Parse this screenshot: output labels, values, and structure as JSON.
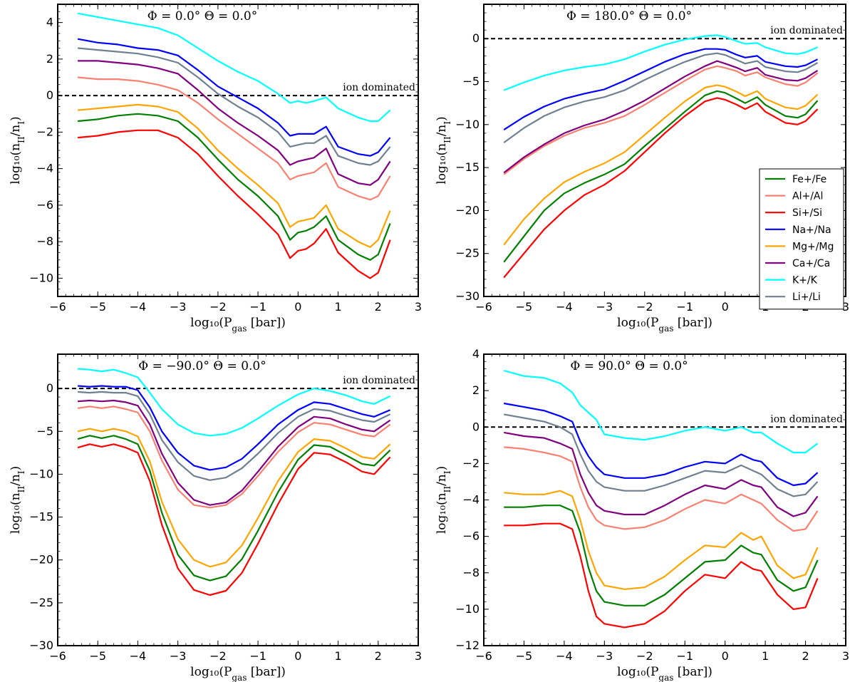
{
  "chart_data": [
    {
      "type": "line",
      "title": "Φ = 0.0° Θ = 0.0°",
      "xlabel": "log10(Pgas [bar])",
      "ylabel": "log10(nII/nI)",
      "xlim": [
        -6,
        3
      ],
      "ylim": [
        -11,
        5
      ],
      "xticks": [
        -6,
        -5,
        -4,
        -3,
        -2,
        -1,
        0,
        1,
        2,
        3
      ],
      "yticks": [
        -10,
        -8,
        -6,
        -4,
        -2,
        0,
        2,
        4
      ],
      "annotation": "ion dominated",
      "x": [
        -5.5,
        -5,
        -4.5,
        -4,
        -3.5,
        -3,
        -2.5,
        -2,
        -1.5,
        -1,
        -0.5,
        -0.2,
        0,
        0.2,
        0.4,
        0.7,
        1,
        1.5,
        1.8,
        2,
        2.3
      ],
      "series": [
        {
          "name": "K+/K",
          "color": "#00ffff",
          "values": [
            4.5,
            4.3,
            4.1,
            3.9,
            3.7,
            3.3,
            2.6,
            1.9,
            1.3,
            0.8,
            0.1,
            -0.4,
            -0.3,
            -0.4,
            -0.3,
            -0.1,
            -0.7,
            -1.2,
            -1.4,
            -1.4,
            -0.8
          ]
        },
        {
          "name": "Na+/Na",
          "color": "#0000ff",
          "values": [
            3.1,
            2.9,
            2.8,
            2.6,
            2.5,
            2.2,
            1.4,
            0.5,
            -0.1,
            -0.7,
            -1.5,
            -2.2,
            -2.1,
            -2.1,
            -2.1,
            -1.7,
            -2.8,
            -3.2,
            -3.3,
            -3.1,
            -2.3
          ]
        },
        {
          "name": "Li+/Li",
          "color": "#708090",
          "values": [
            2.6,
            2.5,
            2.4,
            2.3,
            2.1,
            1.8,
            1.0,
            0.1,
            -0.6,
            -1.2,
            -2.0,
            -2.8,
            -2.7,
            -2.6,
            -2.6,
            -2.2,
            -3.3,
            -3.7,
            -3.8,
            -3.6,
            -2.8
          ]
        },
        {
          "name": "Ca+/Ca",
          "color": "#800080",
          "values": [
            1.9,
            1.9,
            1.8,
            1.7,
            1.5,
            1.2,
            0.3,
            -0.7,
            -1.5,
            -2.2,
            -3.0,
            -3.8,
            -3.6,
            -3.5,
            -3.4,
            -2.9,
            -4.3,
            -4.8,
            -4.9,
            -4.6,
            -3.6
          ]
        },
        {
          "name": "Al+/Al",
          "color": "#fa8072",
          "values": [
            1.0,
            0.9,
            0.9,
            0.8,
            0.6,
            0.3,
            -0.4,
            -1.3,
            -2.1,
            -2.9,
            -3.7,
            -4.6,
            -4.4,
            -4.3,
            -4.2,
            -3.7,
            -5.0,
            -5.5,
            -5.7,
            -5.5,
            -4.4
          ]
        },
        {
          "name": "Mg+/Mg",
          "color": "#ffa500",
          "values": [
            -0.8,
            -0.7,
            -0.6,
            -0.5,
            -0.6,
            -0.9,
            -1.8,
            -3.0,
            -4.0,
            -4.9,
            -5.9,
            -7.2,
            -6.9,
            -6.8,
            -6.7,
            -6.0,
            -7.3,
            -8.0,
            -8.3,
            -7.9,
            -6.3
          ]
        },
        {
          "name": "Fe+/Fe",
          "color": "#008000",
          "values": [
            -1.4,
            -1.3,
            -1.1,
            -1.0,
            -1.1,
            -1.4,
            -2.3,
            -3.5,
            -4.6,
            -5.5,
            -6.6,
            -7.9,
            -7.5,
            -7.4,
            -7.2,
            -6.6,
            -7.9,
            -8.7,
            -9.0,
            -8.7,
            -7.0
          ]
        },
        {
          "name": "Si+/Si",
          "color": "#ff0000",
          "values": [
            -2.3,
            -2.2,
            -2.0,
            -1.9,
            -1.9,
            -2.3,
            -3.2,
            -4.4,
            -5.5,
            -6.5,
            -7.6,
            -8.9,
            -8.5,
            -8.4,
            -8.1,
            -7.3,
            -8.6,
            -9.6,
            -10.0,
            -9.7,
            -7.9
          ]
        }
      ]
    },
    {
      "type": "line",
      "title": "Φ = 180.0° Θ = 0.0°",
      "xlabel": "log10(Pgas [bar])",
      "ylabel": "log10(nII/nI)",
      "xlim": [
        -6,
        3
      ],
      "ylim": [
        -30,
        4
      ],
      "xticks": [
        -6,
        -5,
        -4,
        -3,
        -2,
        -1,
        0,
        1,
        2,
        3
      ],
      "yticks": [
        -30,
        -25,
        -20,
        -15,
        -10,
        -5,
        0
      ],
      "annotation": "ion dominated",
      "legend_position": "lower-right",
      "x": [
        -5.5,
        -5,
        -4.5,
        -4,
        -3.5,
        -3,
        -2.5,
        -2,
        -1.5,
        -1,
        -0.5,
        -0.2,
        0,
        0.3,
        0.5,
        0.8,
        1,
        1.5,
        1.8,
        2,
        2.3
      ],
      "series": [
        {
          "name": "Fe+/Fe",
          "color": "#008000",
          "values": [
            -26.0,
            -23.0,
            -20.0,
            -18.0,
            -16.8,
            -15.8,
            -14.6,
            -12.5,
            -10.5,
            -8.5,
            -6.6,
            -6.1,
            -6.3,
            -7.0,
            -7.5,
            -6.8,
            -7.7,
            -9.0,
            -9.2,
            -8.8,
            -7.2
          ]
        },
        {
          "name": "Al+/Al",
          "color": "#fa8072",
          "values": [
            -15.8,
            -14.0,
            -12.5,
            -11.3,
            -10.4,
            -9.8,
            -9.0,
            -7.7,
            -6.3,
            -4.9,
            -3.6,
            -3.2,
            -3.4,
            -3.8,
            -4.3,
            -3.9,
            -4.5,
            -5.3,
            -5.5,
            -5.1,
            -4.0
          ]
        },
        {
          "name": "Si+/Si",
          "color": "#ff0000",
          "values": [
            -27.8,
            -25.0,
            -22.2,
            -20.0,
            -18.2,
            -17.0,
            -15.4,
            -13.2,
            -11.0,
            -9.0,
            -7.3,
            -6.9,
            -7.1,
            -7.7,
            -8.2,
            -7.5,
            -8.5,
            -9.8,
            -10.0,
            -9.6,
            -8.2
          ]
        },
        {
          "name": "Na+/Na",
          "color": "#0000ff",
          "values": [
            -10.6,
            -9.1,
            -7.9,
            -7.0,
            -6.4,
            -5.9,
            -4.9,
            -3.8,
            -2.7,
            -1.8,
            -1.2,
            -1.2,
            -1.3,
            -1.9,
            -2.2,
            -2.0,
            -2.7,
            -3.2,
            -3.3,
            -3.1,
            -2.4
          ]
        },
        {
          "name": "Mg+/Mg",
          "color": "#ffa500",
          "values": [
            -24.0,
            -21.0,
            -18.6,
            -16.7,
            -15.5,
            -14.5,
            -13.2,
            -11.2,
            -9.2,
            -7.3,
            -5.7,
            -5.4,
            -5.6,
            -6.2,
            -6.7,
            -6.1,
            -7.0,
            -8.0,
            -8.2,
            -7.8,
            -6.5
          ]
        },
        {
          "name": "Ca+/Ca",
          "color": "#800080",
          "values": [
            -15.6,
            -13.8,
            -12.3,
            -11.0,
            -10.1,
            -9.4,
            -8.4,
            -7.2,
            -5.8,
            -4.4,
            -3.2,
            -2.6,
            -2.9,
            -3.4,
            -3.8,
            -3.4,
            -4.2,
            -4.8,
            -4.9,
            -4.6,
            -3.7
          ]
        },
        {
          "name": "K+/K",
          "color": "#00ffff",
          "values": [
            -6.0,
            -5.1,
            -4.3,
            -3.7,
            -3.3,
            -3.0,
            -2.4,
            -1.5,
            -0.7,
            -0.1,
            0.3,
            0.4,
            0.2,
            -0.3,
            -0.6,
            -0.5,
            -1.0,
            -1.7,
            -1.8,
            -1.6,
            -1.0
          ]
        },
        {
          "name": "Li+/Li",
          "color": "#708090",
          "values": [
            -12.1,
            -10.4,
            -9.0,
            -8.0,
            -7.3,
            -6.8,
            -6.0,
            -4.8,
            -3.7,
            -2.7,
            -1.9,
            -1.7,
            -1.9,
            -2.5,
            -2.9,
            -2.6,
            -3.3,
            -3.8,
            -3.9,
            -3.6,
            -2.8
          ]
        }
      ]
    },
    {
      "type": "line",
      "title": "Φ = −90.0° Θ = 0.0°",
      "xlabel": "log10(Pgas [bar])",
      "ylabel": "log10(nII/nI)",
      "xlim": [
        -6,
        3
      ],
      "ylim": [
        -30,
        4
      ],
      "xticks": [
        -6,
        -5,
        -4,
        -3,
        -2,
        -1,
        0,
        1,
        2,
        3
      ],
      "yticks": [
        -30,
        -25,
        -20,
        -15,
        -10,
        -5,
        0
      ],
      "annotation": "ion dominated",
      "x": [
        -5.5,
        -5.2,
        -4.9,
        -4.6,
        -4.3,
        -4.0,
        -3.7,
        -3.4,
        -3.0,
        -2.6,
        -2.2,
        -1.8,
        -1.4,
        -1.0,
        -0.5,
        0,
        0.4,
        0.8,
        1.2,
        1.6,
        1.9,
        2.3
      ],
      "series": [
        {
          "name": "K+/K",
          "color": "#00ffff",
          "values": [
            2.3,
            2.2,
            2.0,
            2.2,
            1.8,
            1.3,
            -0.5,
            -2.4,
            -4.2,
            -5.2,
            -5.5,
            -5.3,
            -4.6,
            -3.5,
            -2.0,
            -0.7,
            0.0,
            -0.3,
            -0.8,
            -1.5,
            -1.8,
            -0.9
          ]
        },
        {
          "name": "Na+/Na",
          "color": "#0000ff",
          "values": [
            0.3,
            0.2,
            0.3,
            0.2,
            0.2,
            -0.2,
            -2.2,
            -5.0,
            -7.5,
            -9.0,
            -9.5,
            -9.2,
            -8.2,
            -6.5,
            -4.2,
            -2.5,
            -1.6,
            -1.8,
            -2.4,
            -3.0,
            -3.3,
            -2.5
          ]
        },
        {
          "name": "Li+/Li",
          "color": "#708090",
          "values": [
            -0.4,
            -0.5,
            -0.4,
            -0.5,
            -0.5,
            -0.9,
            -3.0,
            -6.0,
            -8.6,
            -10.2,
            -10.7,
            -10.4,
            -9.3,
            -7.6,
            -5.2,
            -3.3,
            -2.4,
            -2.6,
            -3.2,
            -3.7,
            -3.9,
            -3.0
          ]
        },
        {
          "name": "Ca+/Ca",
          "color": "#800080",
          "values": [
            -1.5,
            -1.4,
            -1.5,
            -1.4,
            -1.6,
            -2.0,
            -4.2,
            -7.6,
            -11.0,
            -13.0,
            -13.6,
            -13.3,
            -11.9,
            -9.7,
            -6.8,
            -4.5,
            -3.3,
            -3.5,
            -4.2,
            -4.8,
            -5.0,
            -3.7
          ]
        },
        {
          "name": "Al+/Al",
          "color": "#fa8072",
          "values": [
            -2.3,
            -2.1,
            -2.3,
            -2.1,
            -2.4,
            -2.8,
            -5.0,
            -8.4,
            -11.8,
            -13.6,
            -13.9,
            -13.6,
            -12.3,
            -10.2,
            -7.4,
            -5.1,
            -4.0,
            -4.2,
            -4.8,
            -5.4,
            -5.6,
            -4.2
          ]
        },
        {
          "name": "Mg+/Mg",
          "color": "#ffa500",
          "values": [
            -5.0,
            -4.7,
            -5.0,
            -4.7,
            -5.0,
            -5.6,
            -8.5,
            -13.2,
            -17.6,
            -20.0,
            -20.8,
            -20.3,
            -18.3,
            -15.1,
            -10.8,
            -7.4,
            -5.9,
            -6.1,
            -7.0,
            -8.0,
            -8.2,
            -6.5
          ]
        },
        {
          "name": "Fe+/Fe",
          "color": "#008000",
          "values": [
            -5.9,
            -5.5,
            -5.8,
            -5.5,
            -5.9,
            -6.5,
            -9.6,
            -14.5,
            -19.4,
            -21.8,
            -22.4,
            -21.9,
            -19.9,
            -16.6,
            -12.1,
            -8.3,
            -6.6,
            -6.8,
            -7.8,
            -8.8,
            -9.0,
            -7.2
          ]
        },
        {
          "name": "Si+/Si",
          "color": "#ff0000",
          "values": [
            -6.9,
            -6.5,
            -6.8,
            -6.5,
            -6.9,
            -7.5,
            -10.8,
            -15.9,
            -21.0,
            -23.5,
            -24.1,
            -23.6,
            -21.5,
            -18.1,
            -13.5,
            -9.4,
            -7.5,
            -7.7,
            -8.6,
            -9.7,
            -10.0,
            -8.0
          ]
        }
      ]
    },
    {
      "type": "line",
      "title": "Φ = 90.0° Θ = 0.0°",
      "xlabel": "log10(Pgas [bar])",
      "ylabel": "log10(nII/nI)",
      "xlim": [
        -6,
        3
      ],
      "ylim": [
        -12,
        4
      ],
      "xticks": [
        -6,
        -5,
        -4,
        -3,
        -2,
        -1,
        0,
        1,
        2,
        3
      ],
      "yticks": [
        -12,
        -10,
        -8,
        -6,
        -4,
        -2,
        0,
        2,
        4
      ],
      "annotation": "ion dominated",
      "x": [
        -5.5,
        -5,
        -4.5,
        -4.1,
        -3.8,
        -3.6,
        -3.4,
        -3.2,
        -3.0,
        -2.5,
        -2.0,
        -1.5,
        -1.0,
        -0.5,
        0,
        0.4,
        0.7,
        0.9,
        1.3,
        1.7,
        2.0,
        2.3
      ],
      "series": [
        {
          "name": "K+/K",
          "color": "#00ffff",
          "values": [
            3.1,
            2.8,
            2.7,
            2.4,
            1.9,
            1.2,
            0.8,
            0.4,
            -0.4,
            -0.6,
            -0.7,
            -0.5,
            -0.2,
            0.0,
            -0.2,
            0.0,
            -0.3,
            -0.3,
            -0.9,
            -1.4,
            -1.4,
            -0.9
          ]
        },
        {
          "name": "Na+/Na",
          "color": "#0000ff",
          "values": [
            1.3,
            1.1,
            0.9,
            0.6,
            0.3,
            -0.8,
            -1.6,
            -2.2,
            -2.6,
            -2.8,
            -2.8,
            -2.6,
            -2.2,
            -1.9,
            -2.0,
            -1.5,
            -1.8,
            -1.9,
            -2.8,
            -3.2,
            -3.1,
            -2.5
          ]
        },
        {
          "name": "Li+/Li",
          "color": "#708090",
          "values": [
            0.7,
            0.5,
            0.3,
            0.0,
            -0.4,
            -1.5,
            -2.4,
            -3.0,
            -3.3,
            -3.5,
            -3.5,
            -3.2,
            -2.8,
            -2.4,
            -2.5,
            -2.1,
            -2.4,
            -2.6,
            -3.4,
            -3.8,
            -3.7,
            -3.0
          ]
        },
        {
          "name": "Ca+/Ca",
          "color": "#800080",
          "values": [
            -0.3,
            -0.5,
            -0.6,
            -0.9,
            -1.2,
            -2.6,
            -3.6,
            -4.3,
            -4.6,
            -4.8,
            -4.8,
            -4.3,
            -3.7,
            -3.2,
            -3.4,
            -2.9,
            -3.2,
            -3.3,
            -4.4,
            -4.9,
            -4.7,
            -3.8
          ]
        },
        {
          "name": "Al+/Al",
          "color": "#fa8072",
          "values": [
            -1.1,
            -1.2,
            -1.4,
            -1.6,
            -1.9,
            -3.3,
            -4.4,
            -5.1,
            -5.4,
            -5.6,
            -5.5,
            -5.1,
            -4.5,
            -4.0,
            -4.2,
            -3.7,
            -4.0,
            -4.2,
            -5.1,
            -5.7,
            -5.6,
            -4.6
          ]
        },
        {
          "name": "Mg+/Mg",
          "color": "#ffa500",
          "values": [
            -3.6,
            -3.7,
            -3.7,
            -3.5,
            -3.8,
            -5.1,
            -6.8,
            -8.0,
            -8.7,
            -8.9,
            -8.8,
            -8.2,
            -7.3,
            -6.5,
            -6.6,
            -5.8,
            -6.2,
            -6.0,
            -7.6,
            -8.3,
            -8.1,
            -6.6
          ]
        },
        {
          "name": "Fe+/Fe",
          "color": "#008000",
          "values": [
            -4.4,
            -4.4,
            -4.3,
            -4.3,
            -4.6,
            -5.8,
            -7.7,
            -9.0,
            -9.6,
            -9.8,
            -9.8,
            -9.2,
            -8.3,
            -7.4,
            -7.3,
            -6.5,
            -6.9,
            -7.0,
            -8.4,
            -9.0,
            -8.8,
            -7.3
          ]
        },
        {
          "name": "Si+/Si",
          "color": "#ff0000",
          "values": [
            -5.4,
            -5.4,
            -5.3,
            -5.3,
            -5.6,
            -7.1,
            -9.0,
            -10.4,
            -10.8,
            -11.0,
            -10.8,
            -10.1,
            -9.0,
            -8.1,
            -8.3,
            -7.4,
            -7.8,
            -7.9,
            -9.2,
            -10.0,
            -9.9,
            -8.3
          ]
        }
      ]
    }
  ]
}
